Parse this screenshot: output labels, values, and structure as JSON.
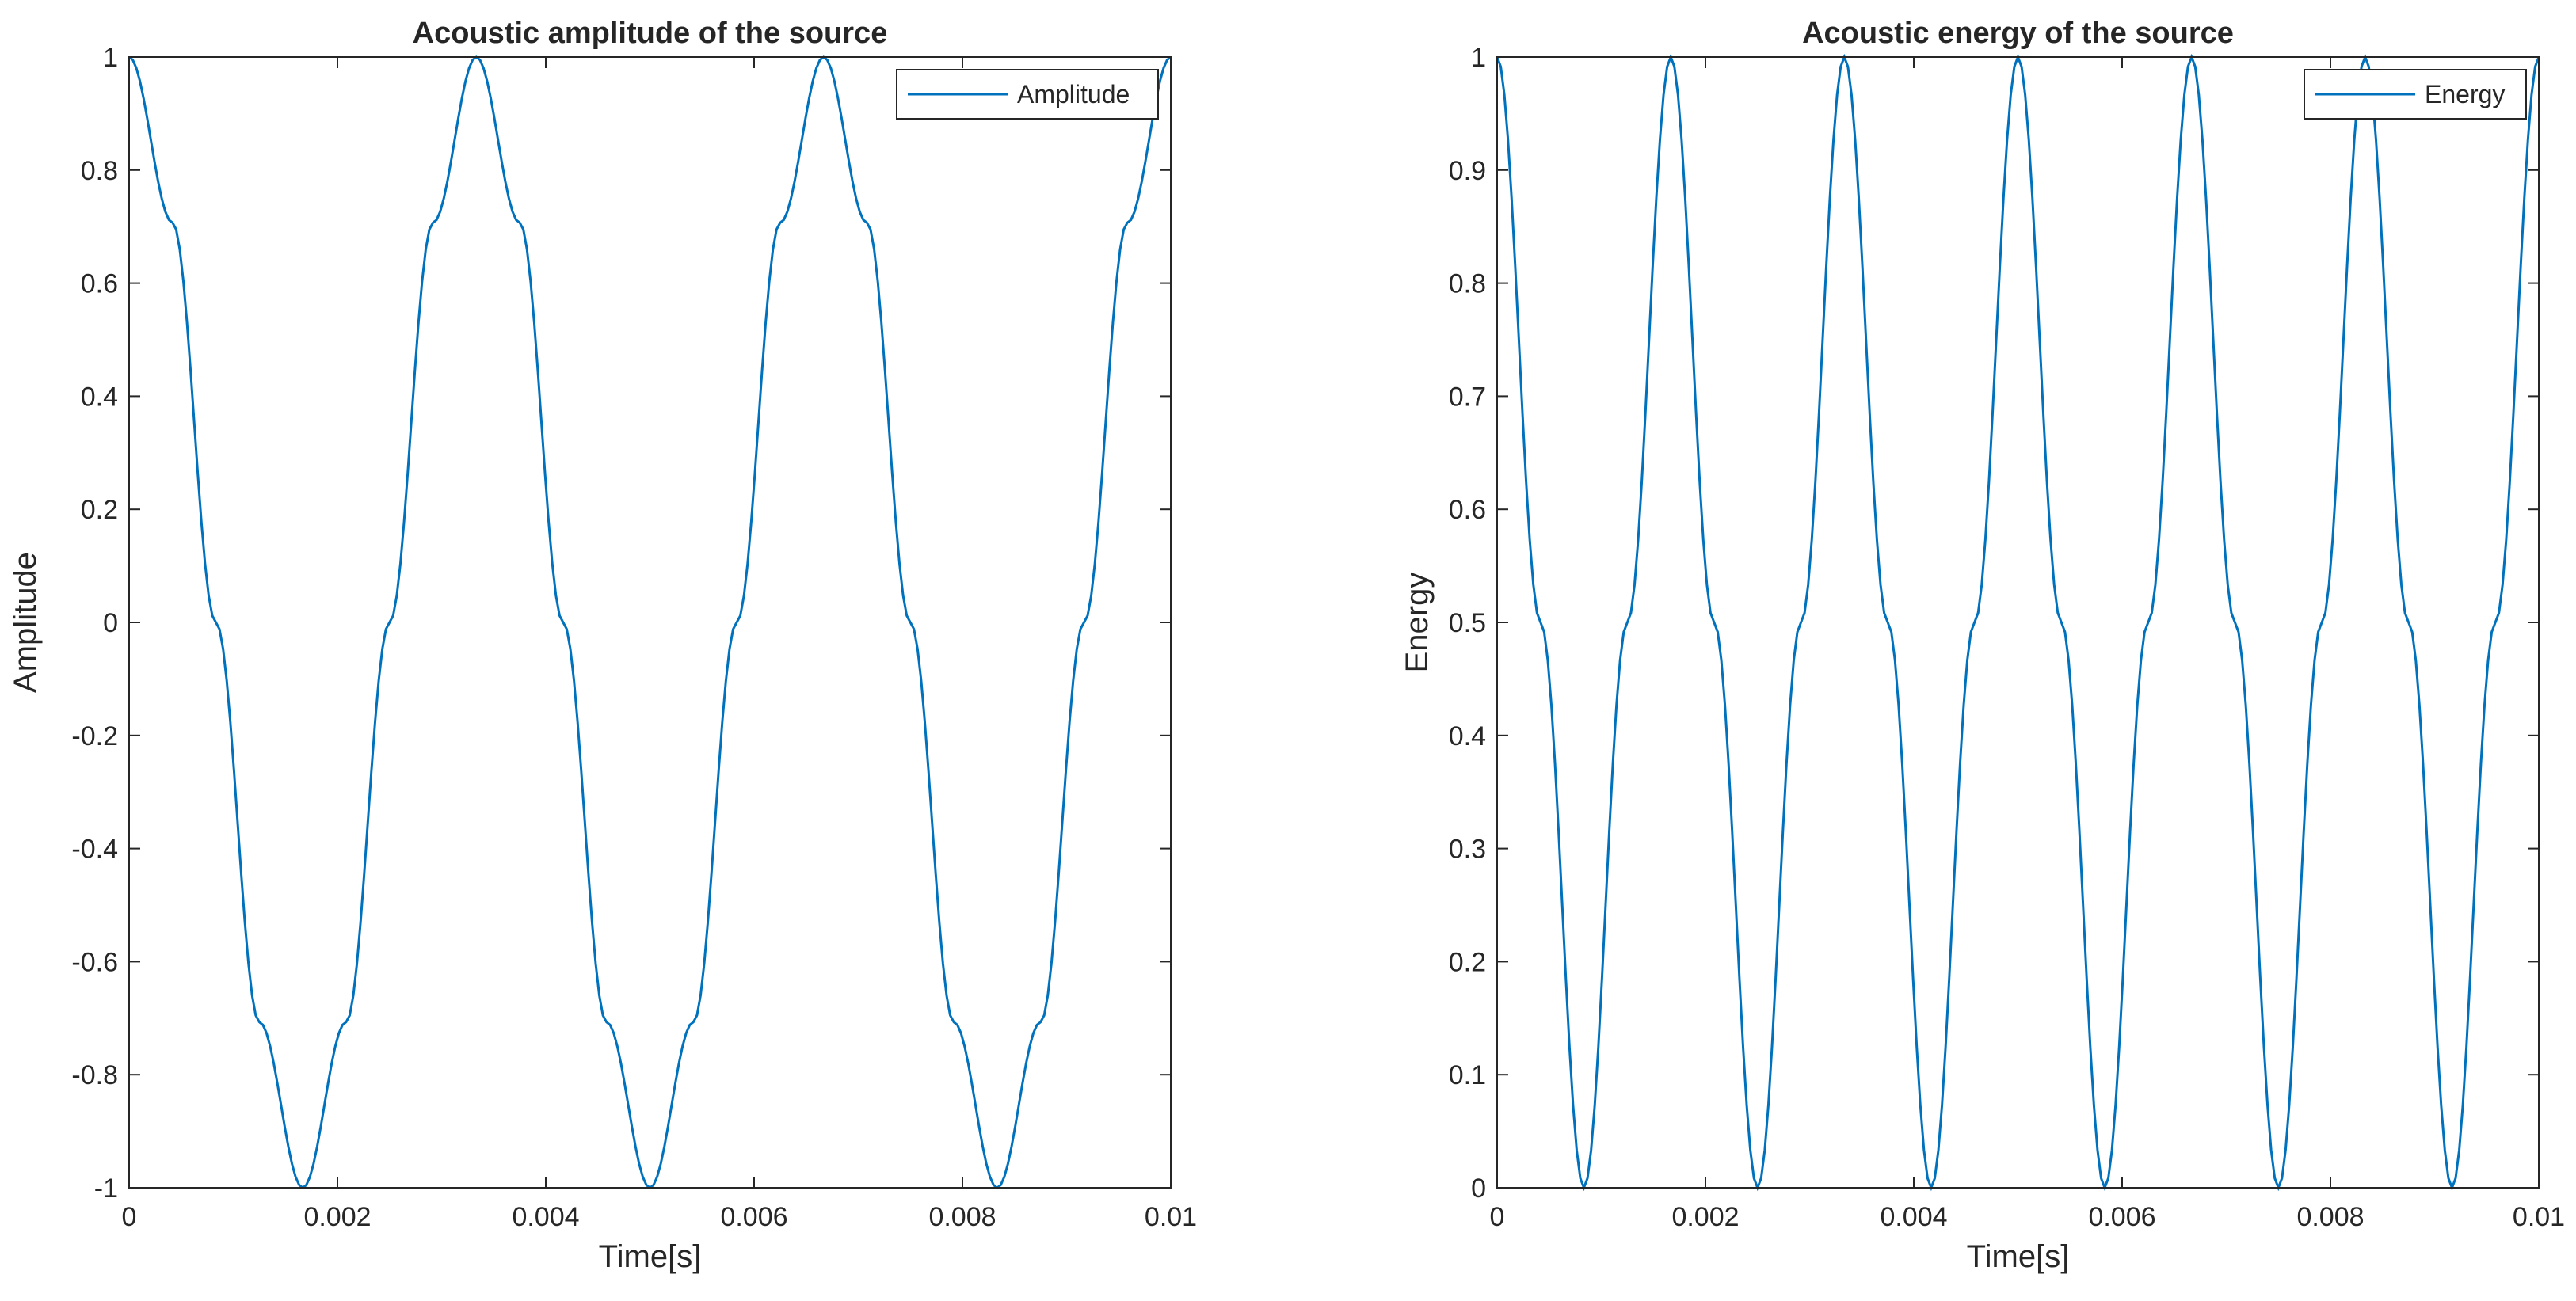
{
  "chart_data": [
    {
      "type": "line",
      "title": "Acoustic amplitude of the source",
      "xlabel": "Time[s]",
      "ylabel": "Amplitude",
      "xlim": [
        0,
        0.01
      ],
      "ylim": [
        -1,
        1
      ],
      "xticks": [
        0,
        0.002,
        0.004,
        0.006,
        0.008,
        0.01
      ],
      "xtick_labels": [
        "0",
        "0.002",
        "0.004",
        "0.006",
        "0.008",
        "0.01"
      ],
      "yticks": [
        -1,
        -0.8,
        -0.6,
        -0.4,
        -0.2,
        0,
        0.2,
        0.4,
        0.6,
        0.8,
        1
      ],
      "ytick_labels": [
        "-1",
        "-0.8",
        "-0.6",
        "-0.4",
        "-0.2",
        "0",
        "0.2",
        "0.4",
        "0.6",
        "0.8",
        "1"
      ],
      "grid": false,
      "legend_position": "top-right",
      "series": [
        {
          "name": "Amplitude",
          "color": "#0072BD",
          "x": [
            0,
            0.000417,
            0.000833,
            0.00125,
            0.001667,
            0.002083,
            0.0025,
            0.002917,
            0.003333,
            0.00375,
            0.004167,
            0.004583,
            0.005,
            0.005417,
            0.005833,
            0.00625,
            0.006667,
            0.007083,
            0.0075,
            0.007917,
            0.008333,
            0.00875,
            0.009167,
            0.009583,
            0.01
          ],
          "y": [
            1,
            0.707,
            0,
            -0.707,
            -1,
            -0.707,
            0,
            0.707,
            1,
            0.707,
            0,
            -0.707,
            -1,
            -0.707,
            0,
            0.707,
            1,
            0.707,
            0,
            -0.707,
            -1,
            -0.707,
            0,
            0.707,
            1
          ]
        }
      ]
    },
    {
      "type": "line",
      "title": "Acoustic energy of the source",
      "xlabel": "Time[s]",
      "ylabel": "Energy",
      "xlim": [
        0,
        0.01
      ],
      "ylim": [
        0,
        1
      ],
      "xticks": [
        0,
        0.002,
        0.004,
        0.006,
        0.008,
        0.01
      ],
      "xtick_labels": [
        "0",
        "0.002",
        "0.004",
        "0.006",
        "0.008",
        "0.01"
      ],
      "yticks": [
        0,
        0.1,
        0.2,
        0.3,
        0.4,
        0.5,
        0.6,
        0.7,
        0.8,
        0.9,
        1
      ],
      "ytick_labels": [
        "0",
        "0.1",
        "0.2",
        "0.3",
        "0.4",
        "0.5",
        "0.6",
        "0.7",
        "0.8",
        "0.9",
        "1"
      ],
      "grid": false,
      "legend_position": "top-right",
      "series": [
        {
          "name": "Energy",
          "color": "#0072BD",
          "x": [
            0,
            0.000417,
            0.000833,
            0.00125,
            0.001667,
            0.002083,
            0.0025,
            0.002917,
            0.003333,
            0.00375,
            0.004167,
            0.004583,
            0.005,
            0.005417,
            0.005833,
            0.00625,
            0.006667,
            0.007083,
            0.0075,
            0.007917,
            0.008333,
            0.00875,
            0.009167,
            0.009583,
            0.01
          ],
          "y": [
            1,
            0.5,
            0,
            0.5,
            1,
            0.5,
            0,
            0.5,
            1,
            0.5,
            0,
            0.5,
            1,
            0.5,
            0,
            0.5,
            1,
            0.5,
            0,
            0.5,
            1,
            0.5,
            0,
            0.5,
            1
          ]
        }
      ]
    }
  ]
}
